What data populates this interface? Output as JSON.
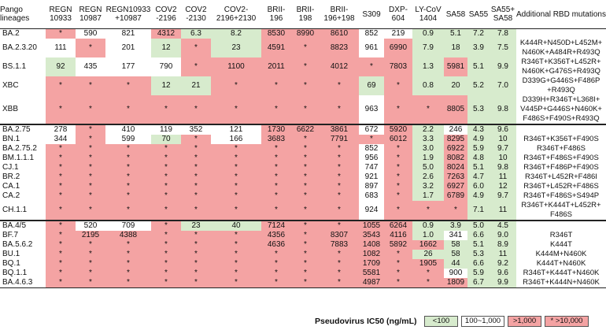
{
  "header": [
    "Pango lineages",
    "REGN 10933",
    "REGN 10987",
    "REGN10933 +10987",
    "COV2 -2196",
    "COV2 -2130",
    "COV2- 2196+2130",
    "BRII- 196",
    "BRII- 198",
    "BRII- 196+198",
    "S309",
    "DXP- 604",
    "LY-CoV 1404",
    "SA58",
    "SA55",
    "SA55+ SA58",
    "Additional RBD mutations"
  ],
  "colors": {
    "red": "#f4a3a3",
    "green": "#d7ebcd",
    "white": "#ffffff"
  },
  "rows": [
    {
      "lineage": "BA.2",
      "values": [
        "*",
        "590",
        "821",
        "4312",
        "6.3",
        "8.2",
        "8530",
        "8990",
        "8610",
        "852",
        "219",
        "0.9",
        "5.1",
        "7.2",
        "7.8"
      ],
      "colors": [
        "r",
        "w",
        "w",
        "r",
        "g",
        "g",
        "r",
        "r",
        "r",
        "w",
        "w",
        "g",
        "g",
        "g",
        "g"
      ],
      "add": "",
      "span": 1
    },
    {
      "lineage": "BA.2.3.20",
      "values": [
        "111",
        "*",
        "201",
        "12",
        "*",
        "23",
        "4591",
        "*",
        "8823",
        "961",
        "6990",
        "7.9",
        "18",
        "3.9",
        "7.5"
      ],
      "colors": [
        "w",
        "r",
        "w",
        "g",
        "r",
        "g",
        "r",
        "r",
        "r",
        "w",
        "r",
        "g",
        "g",
        "g",
        "g"
      ],
      "add": "K444R+N450D+L452M+ N460K+A484R+R493Q",
      "span": 2
    },
    {
      "lineage": "BS.1.1",
      "values": [
        "92",
        "435",
        "177",
        "790",
        "*",
        "1100",
        "2011",
        "*",
        "4012",
        "*",
        "7803",
        "1.3",
        "5981",
        "5.1",
        "9.9"
      ],
      "colors": [
        "g",
        "w",
        "w",
        "w",
        "r",
        "r",
        "r",
        "r",
        "r",
        "r",
        "r",
        "g",
        "r",
        "g",
        "g"
      ],
      "add": "R346T+K356T+L452R+ N460K+G476S+R493Q",
      "span": 2
    },
    {
      "lineage": "XBC",
      "values": [
        "*",
        "*",
        "*",
        "12",
        "21",
        "*",
        "*",
        "*",
        "*",
        "69",
        "*",
        "0.8",
        "20",
        "5.2",
        "7.0"
      ],
      "colors": [
        "r",
        "r",
        "r",
        "g",
        "g",
        "r",
        "r",
        "r",
        "r",
        "g",
        "r",
        "g",
        "g",
        "g",
        "g"
      ],
      "add": "D339G+G446S+F486P +R493Q",
      "span": 2
    },
    {
      "lineage": "XBB",
      "values": [
        "*",
        "*",
        "*",
        "*",
        "*",
        "*",
        "*",
        "*",
        "*",
        "963",
        "*",
        "*",
        "8805",
        "5.3",
        "9.8"
      ],
      "colors": [
        "r",
        "r",
        "r",
        "r",
        "r",
        "r",
        "r",
        "r",
        "r",
        "w",
        "r",
        "r",
        "r",
        "g",
        "g"
      ],
      "add": "D339H+R346T+L368I+ V445P+G446S+N460K+ F486S+F490S+R493Q",
      "span": 3
    },
    {
      "lineage": "BA.2.75",
      "values": [
        "278",
        "*",
        "410",
        "119",
        "352",
        "121",
        "1730",
        "6622",
        "3861",
        "672",
        "5920",
        "2.2",
        "246",
        "4.3",
        "9.6"
      ],
      "colors": [
        "w",
        "r",
        "w",
        "w",
        "w",
        "w",
        "r",
        "r",
        "r",
        "w",
        "r",
        "g",
        "w",
        "g",
        "g"
      ],
      "add": "",
      "span": 1,
      "sep": true
    },
    {
      "lineage": "BN.1",
      "values": [
        "344",
        "*",
        "599",
        "70",
        "*",
        "166",
        "3683",
        "*",
        "7791",
        "*",
        "6012",
        "3.3",
        "8295",
        "4.9",
        "10"
      ],
      "colors": [
        "w",
        "r",
        "w",
        "g",
        "r",
        "w",
        "r",
        "r",
        "r",
        "r",
        "r",
        "g",
        "r",
        "g",
        "g"
      ],
      "add": "R346T+K356T+F490S",
      "span": 1
    },
    {
      "lineage": "BA.2.75.2",
      "values": [
        "*",
        "*",
        "*",
        "*",
        "*",
        "*",
        "*",
        "*",
        "*",
        "852",
        "*",
        "3.0",
        "6922",
        "5.9",
        "9.7"
      ],
      "colors": [
        "r",
        "r",
        "r",
        "r",
        "r",
        "r",
        "r",
        "r",
        "r",
        "w",
        "r",
        "g",
        "r",
        "g",
        "g"
      ],
      "add": "R346T+F486S",
      "span": 1
    },
    {
      "lineage": "BM.1.1.1",
      "values": [
        "*",
        "*",
        "*",
        "*",
        "*",
        "*",
        "*",
        "*",
        "*",
        "956",
        "*",
        "1.9",
        "8082",
        "4.8",
        "10"
      ],
      "colors": [
        "r",
        "r",
        "r",
        "r",
        "r",
        "r",
        "r",
        "r",
        "r",
        "w",
        "r",
        "g",
        "r",
        "g",
        "g"
      ],
      "add": "R346T+F486S+F490S",
      "span": 1
    },
    {
      "lineage": "CJ.1",
      "values": [
        "*",
        "*",
        "*",
        "*",
        "*",
        "*",
        "*",
        "*",
        "*",
        "747",
        "*",
        "5.0",
        "8024",
        "5.1",
        "9.8"
      ],
      "colors": [
        "r",
        "r",
        "r",
        "r",
        "r",
        "r",
        "r",
        "r",
        "r",
        "w",
        "r",
        "g",
        "r",
        "g",
        "g"
      ],
      "add": "R346T+F486P+F490S",
      "span": 1
    },
    {
      "lineage": "BR.2",
      "values": [
        "*",
        "*",
        "*",
        "*",
        "*",
        "*",
        "*",
        "*",
        "*",
        "921",
        "*",
        "2.6",
        "7263",
        "4.7",
        "11"
      ],
      "colors": [
        "r",
        "r",
        "r",
        "r",
        "r",
        "r",
        "r",
        "r",
        "r",
        "w",
        "r",
        "g",
        "r",
        "g",
        "g"
      ],
      "add": "R346T+L452R+F486I",
      "span": 1
    },
    {
      "lineage": "CA.1",
      "values": [
        "*",
        "*",
        "*",
        "*",
        "*",
        "*",
        "*",
        "*",
        "*",
        "897",
        "*",
        "3.2",
        "6927",
        "6.0",
        "12"
      ],
      "colors": [
        "r",
        "r",
        "r",
        "r",
        "r",
        "r",
        "r",
        "r",
        "r",
        "w",
        "r",
        "g",
        "r",
        "g",
        "g"
      ],
      "add": "R346T+L452R+F486S",
      "span": 1
    },
    {
      "lineage": "CA.2",
      "values": [
        "*",
        "*",
        "*",
        "*",
        "*",
        "*",
        "*",
        "*",
        "*",
        "683",
        "*",
        "1.7",
        "6789",
        "4.9",
        "9.7"
      ],
      "colors": [
        "r",
        "r",
        "r",
        "r",
        "r",
        "r",
        "r",
        "r",
        "r",
        "w",
        "r",
        "g",
        "r",
        "g",
        "g"
      ],
      "add": "R346T+F486S+S494P",
      "span": 1
    },
    {
      "lineage": "CH.1.1",
      "values": [
        "*",
        "*",
        "*",
        "*",
        "*",
        "*",
        "*",
        "*",
        "*",
        "924",
        "*",
        "*",
        "*",
        "7.1",
        "11"
      ],
      "colors": [
        "r",
        "r",
        "r",
        "r",
        "r",
        "r",
        "r",
        "r",
        "r",
        "w",
        "r",
        "r",
        "r",
        "g",
        "g"
      ],
      "add": "R346T+K444T+L452R+ F486S",
      "span": 2
    },
    {
      "lineage": "BA.4/5",
      "values": [
        "*",
        "520",
        "709",
        "*",
        "23",
        "40",
        "7124",
        "*",
        "*",
        "1055",
        "6264",
        "0.9",
        "3.9",
        "5.0",
        "4.5"
      ],
      "colors": [
        "r",
        "w",
        "w",
        "r",
        "g",
        "g",
        "r",
        "r",
        "r",
        "r",
        "r",
        "g",
        "g",
        "g",
        "g"
      ],
      "add": "",
      "span": 1,
      "sep": true
    },
    {
      "lineage": "BF.7",
      "values": [
        "*",
        "2195",
        "4388",
        "*",
        "*",
        "*",
        "4356",
        "*",
        "8307",
        "3543",
        "4116",
        "1.0",
        "341",
        "6.6",
        "9.0"
      ],
      "colors": [
        "r",
        "r",
        "r",
        "r",
        "r",
        "r",
        "r",
        "r",
        "r",
        "r",
        "r",
        "g",
        "w",
        "g",
        "g"
      ],
      "add": "R346T",
      "span": 1
    },
    {
      "lineage": "BA.5.6.2",
      "values": [
        "*",
        "*",
        "*",
        "*",
        "*",
        "*",
        "4636",
        "*",
        "7883",
        "1408",
        "5892",
        "1662",
        "58",
        "5.1",
        "8.9"
      ],
      "colors": [
        "r",
        "r",
        "r",
        "r",
        "r",
        "r",
        "r",
        "r",
        "r",
        "r",
        "r",
        "r",
        "g",
        "g",
        "g"
      ],
      "add": "K444T",
      "span": 1
    },
    {
      "lineage": "BU.1",
      "values": [
        "*",
        "*",
        "*",
        "*",
        "*",
        "*",
        "*",
        "*",
        "*",
        "1082",
        "*",
        "26",
        "58",
        "5.3",
        "11"
      ],
      "colors": [
        "r",
        "r",
        "r",
        "r",
        "r",
        "r",
        "r",
        "r",
        "r",
        "r",
        "r",
        "g",
        "g",
        "g",
        "g"
      ],
      "add": "K444M+N460K",
      "span": 1
    },
    {
      "lineage": "BQ.1",
      "values": [
        "*",
        "*",
        "*",
        "*",
        "*",
        "*",
        "*",
        "*",
        "*",
        "1709",
        "*",
        "1905",
        "44",
        "6.6",
        "9.2"
      ],
      "colors": [
        "r",
        "r",
        "r",
        "r",
        "r",
        "r",
        "r",
        "r",
        "r",
        "r",
        "r",
        "r",
        "g",
        "g",
        "g"
      ],
      "add": "K444T+N460K",
      "span": 1
    },
    {
      "lineage": "BQ.1.1",
      "values": [
        "*",
        "*",
        "*",
        "*",
        "*",
        "*",
        "*",
        "*",
        "*",
        "5581",
        "*",
        "*",
        "900",
        "5.9",
        "9.6"
      ],
      "colors": [
        "r",
        "r",
        "r",
        "r",
        "r",
        "r",
        "r",
        "r",
        "r",
        "r",
        "r",
        "r",
        "w",
        "g",
        "g"
      ],
      "add": "R346T+K444T+N460K",
      "span": 1
    },
    {
      "lineage": "BA.4.6.3",
      "values": [
        "*",
        "*",
        "*",
        "*",
        "*",
        "*",
        "*",
        "*",
        "*",
        "4987",
        "*",
        "*",
        "1809",
        "6.7",
        "9.9"
      ],
      "colors": [
        "r",
        "r",
        "r",
        "r",
        "r",
        "r",
        "r",
        "r",
        "r",
        "r",
        "r",
        "r",
        "r",
        "g",
        "g"
      ],
      "add": "R346T+K444N+N460K",
      "span": 1
    }
  ],
  "legend": {
    "title": "Pseudovirus IC50 (ng/mL)",
    "items": [
      {
        "label": "<100",
        "color": "green"
      },
      {
        "label": "100~1,000",
        "color": "white"
      },
      {
        "label": ">1,000",
        "color": "red"
      },
      {
        "label": "* >10,000",
        "color": "red"
      }
    ]
  }
}
